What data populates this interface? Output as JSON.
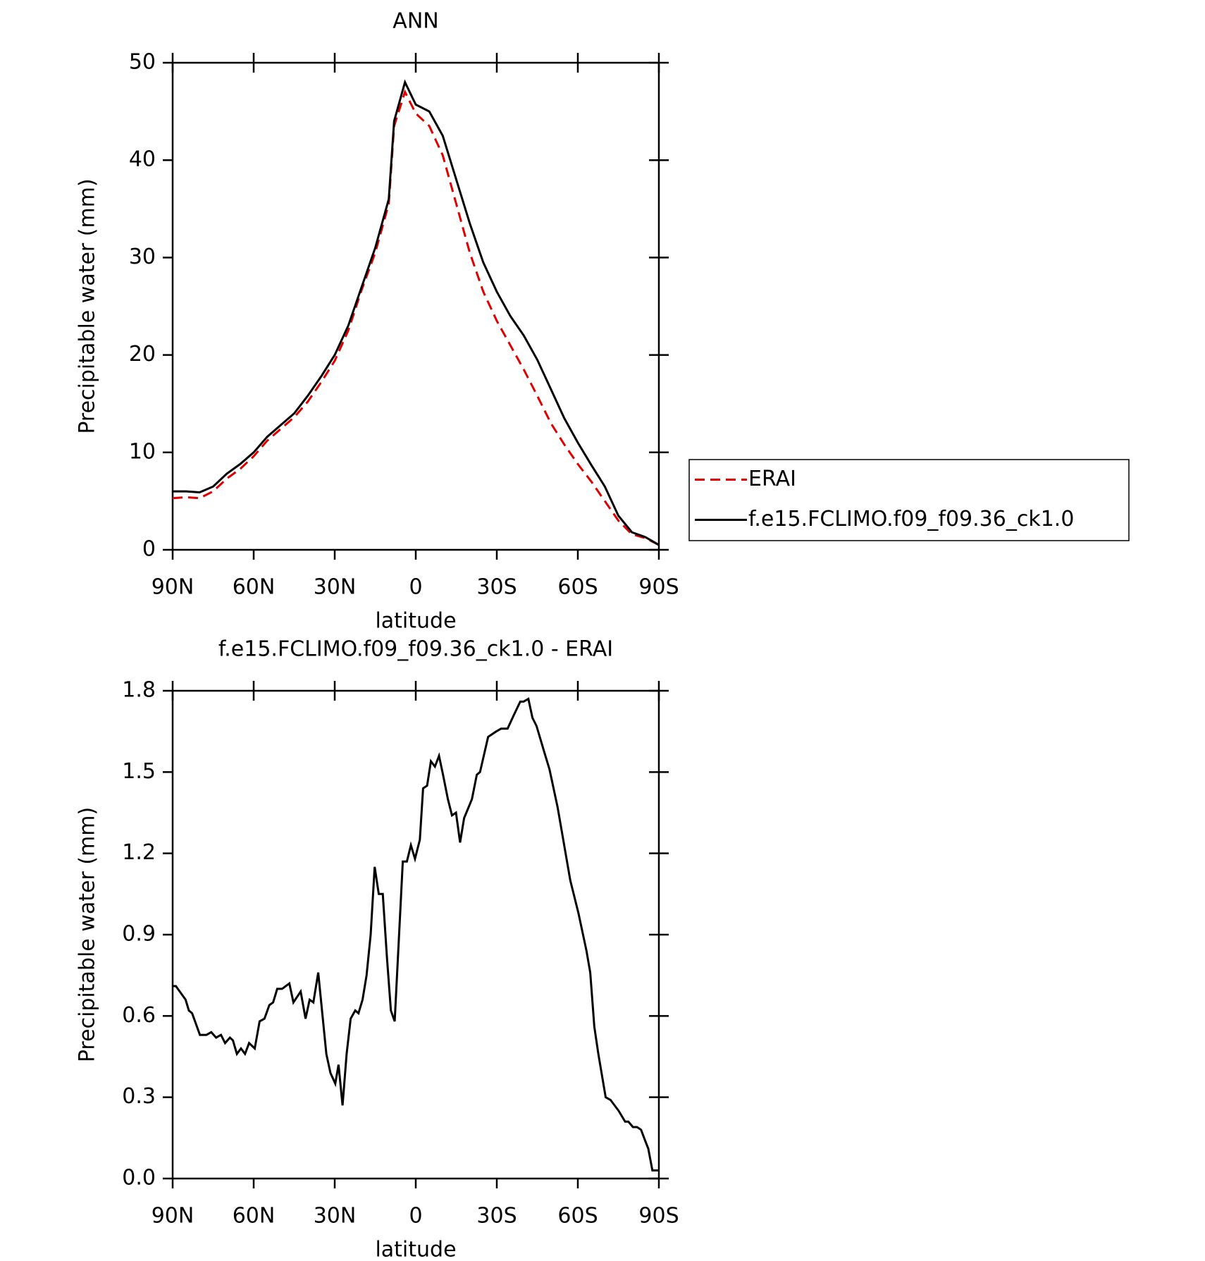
{
  "chart_data": [
    {
      "type": "line",
      "title": "ANN",
      "xlabel": "latitude",
      "ylabel": "Precipitable water (mm)",
      "x": [
        90,
        85,
        80,
        75,
        70,
        65,
        60,
        55,
        50,
        45,
        40,
        35,
        30,
        25,
        20,
        15,
        10,
        8,
        4,
        0,
        -5,
        -10,
        -15,
        -20,
        -25,
        -30,
        -35,
        -40,
        -45,
        -50,
        -55,
        -60,
        -65,
        -70,
        -75,
        -80,
        -85,
        -90
      ],
      "series": [
        {
          "name": "ERAI",
          "color": "#e00000",
          "dash": true,
          "values": [
            5.3,
            5.4,
            5.3,
            6.0,
            7.3,
            8.3,
            9.6,
            11.2,
            12.4,
            13.6,
            15.2,
            17.2,
            19.4,
            22.5,
            26.7,
            30.5,
            35.5,
            43.5,
            47.0,
            44.8,
            43.5,
            40.5,
            35.5,
            30.5,
            26.5,
            23.5,
            21.0,
            18.5,
            15.8,
            13.0,
            10.8,
            8.8,
            7.0,
            5.0,
            3.0,
            1.6,
            1.2,
            0.5
          ]
        },
        {
          "name": "f.e15.FCLIMO.f09_f09.36_ck1.0",
          "color": "#000000",
          "dash": false,
          "values": [
            6.0,
            6.0,
            5.9,
            6.5,
            7.8,
            8.8,
            10.0,
            11.6,
            12.8,
            14.0,
            15.8,
            17.8,
            20.0,
            23.0,
            27.0,
            31.0,
            36.0,
            44.0,
            48.0,
            45.7,
            45.0,
            42.5,
            38.0,
            33.5,
            29.5,
            26.5,
            24.0,
            22.0,
            19.5,
            16.5,
            13.5,
            11.0,
            8.7,
            6.5,
            3.5,
            1.8,
            1.3,
            0.5
          ]
        }
      ],
      "xlim": [
        90,
        -90
      ],
      "xticks": [
        {
          "value": 90,
          "label": "90N"
        },
        {
          "value": 60,
          "label": "60N"
        },
        {
          "value": 30,
          "label": "30N"
        },
        0,
        {
          "value": -30,
          "label": "30S"
        },
        {
          "value": -60,
          "label": "60S"
        },
        {
          "value": -90,
          "label": "90S"
        }
      ],
      "ylim": [
        0,
        50
      ],
      "yticks": [
        0,
        10,
        20,
        30,
        40,
        50
      ],
      "legend": "outside right"
    },
    {
      "type": "line",
      "title": "f.e15.FCLIMO.f09_f09.36_ck1.0 - ERAI",
      "xlabel": "latitude",
      "ylabel": "Precipitable water (mm)",
      "x": [
        90,
        88.8,
        85.2,
        84.0,
        82.8,
        79.9,
        77.5,
        75.7,
        73.9,
        72.1,
        70.6,
        68.8,
        67.7,
        66.2,
        64.7,
        63.2,
        61.7,
        59.6,
        57.8,
        56.0,
        54.2,
        52.8,
        51.3,
        49.5,
        46.8,
        45.3,
        42.6,
        40.8,
        39.3,
        37.9,
        36.1,
        33.1,
        31.6,
        29.8,
        28.6,
        27.1,
        25.6,
        24.1,
        22.4,
        21.2,
        19.7,
        18.2,
        16.7,
        15.2,
        13.7,
        12.2,
        10.7,
        9.2,
        7.8,
        4.8,
        3.3,
        1.8,
        0.3,
        -1.5,
        -2.7,
        -4.2,
        -5.6,
        -7.1,
        -8.6,
        -10.1,
        -11.9,
        -13.4,
        -14.9,
        -16.4,
        -17.9,
        -20.8,
        -22.6,
        -23.8,
        -26.8,
        -29.8,
        -31.6,
        -34.0,
        -36.3,
        -38.7,
        -39.9,
        -41.7,
        -43.2,
        -44.7,
        -47.7,
        -49.5,
        -52.5,
        -57.2,
        -60.2,
        -63.2,
        -64.6,
        -66.1,
        -67.6,
        -70.3,
        -72.1,
        -75.1,
        -77.5,
        -78.7,
        -80.4,
        -81.9,
        -83.4,
        -84.9,
        -86.1,
        -87.6,
        -90
      ],
      "values": [
        0.71,
        0.71,
        0.66,
        0.62,
        0.61,
        0.53,
        0.53,
        0.54,
        0.52,
        0.53,
        0.5,
        0.52,
        0.51,
        0.46,
        0.48,
        0.46,
        0.5,
        0.48,
        0.58,
        0.59,
        0.64,
        0.65,
        0.7,
        0.7,
        0.72,
        0.65,
        0.69,
        0.59,
        0.66,
        0.65,
        0.76,
        0.46,
        0.39,
        0.35,
        0.42,
        0.27,
        0.46,
        0.59,
        0.62,
        0.61,
        0.66,
        0.75,
        0.9,
        1.15,
        1.05,
        1.05,
        0.82,
        0.62,
        0.58,
        1.17,
        1.17,
        1.23,
        1.18,
        1.25,
        1.44,
        1.45,
        1.54,
        1.52,
        1.56,
        1.49,
        1.4,
        1.34,
        1.35,
        1.24,
        1.33,
        1.4,
        1.49,
        1.5,
        1.63,
        1.65,
        1.66,
        1.66,
        1.71,
        1.76,
        1.76,
        1.77,
        1.7,
        1.67,
        1.57,
        1.51,
        1.37,
        1.1,
        0.98,
        0.84,
        0.76,
        0.56,
        0.46,
        0.3,
        0.29,
        0.25,
        0.21,
        0.21,
        0.19,
        0.19,
        0.18,
        0.14,
        0.11,
        0.03,
        0.03
      ],
      "color": "#000000",
      "xlim": [
        90,
        -90
      ],
      "xticks": [
        {
          "value": 90,
          "label": "90N"
        },
        {
          "value": 60,
          "label": "60N"
        },
        {
          "value": 30,
          "label": "30N"
        },
        0,
        {
          "value": -30,
          "label": "30S"
        },
        {
          "value": -60,
          "label": "60S"
        },
        {
          "value": -90,
          "label": "90S"
        }
      ],
      "ylim": [
        0,
        1.8
      ],
      "yticks": [
        {
          "value": 0,
          "label": "0.0"
        },
        0.3,
        0.6,
        0.9,
        1.2,
        1.5,
        1.8
      ]
    }
  ]
}
